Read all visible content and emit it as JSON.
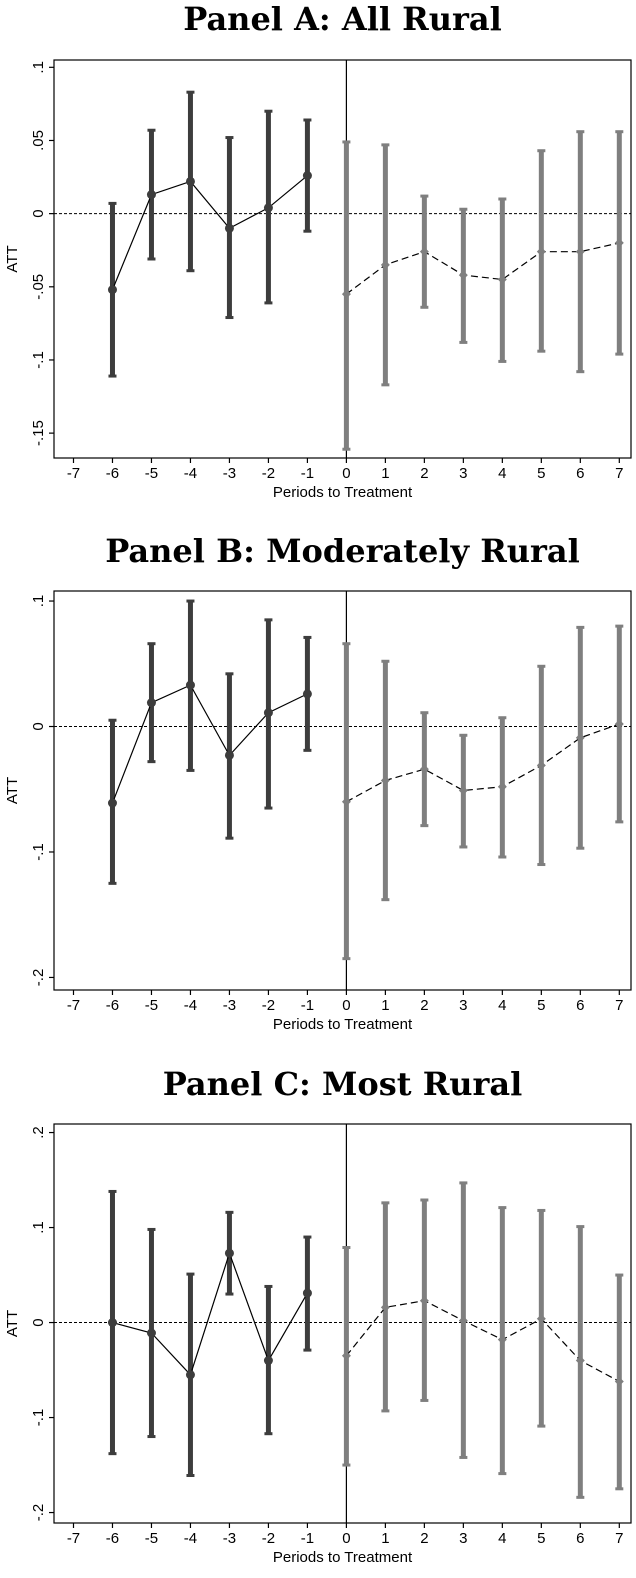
{
  "chart_data": [
    {
      "type": "scatter",
      "title": "Panel A: All Rural",
      "xlabel": "Periods to Treatment",
      "ylabel": "ATT",
      "xlim": [
        -7.5,
        7.3
      ],
      "ylim": [
        -0.167,
        0.105
      ],
      "x_ticks": [
        "-7",
        "-6",
        "-5",
        "-4",
        "-3",
        "-2",
        "-1",
        "0",
        "1",
        "2",
        "3",
        "4",
        "5",
        "6",
        "7"
      ],
      "y_ticks": [
        0.1,
        0.05,
        0,
        -0.05,
        -0.1,
        -0.15
      ],
      "y_tick_labels": [
        ".1",
        ".05",
        "0",
        "-.05",
        "-.1",
        "-.15"
      ],
      "treatment_line_x": 0,
      "reference_y": 0,
      "series": [
        {
          "color": "#3d3d3d",
          "line_style": "solid",
          "points": [
            {
              "x": -6,
              "y": -0.052,
              "lo": -0.111,
              "hi": 0.007
            },
            {
              "x": -5,
              "y": 0.013,
              "lo": -0.031,
              "hi": 0.057
            },
            {
              "x": -4,
              "y": 0.022,
              "lo": -0.039,
              "hi": 0.083
            },
            {
              "x": -3,
              "y": -0.01,
              "lo": -0.071,
              "hi": 0.052
            },
            {
              "x": -2,
              "y": 0.004,
              "lo": -0.061,
              "hi": 0.07
            },
            {
              "x": -1,
              "y": 0.026,
              "lo": -0.012,
              "hi": 0.064
            }
          ]
        },
        {
          "color": "#7f7f7f",
          "line_style": "dashed",
          "points": [
            {
              "x": 0,
              "y": -0.055,
              "lo": -0.161,
              "hi": 0.049
            },
            {
              "x": 1,
              "y": -0.035,
              "lo": -0.117,
              "hi": 0.047
            },
            {
              "x": 2,
              "y": -0.026,
              "lo": -0.064,
              "hi": 0.012
            },
            {
              "x": 3,
              "y": -0.042,
              "lo": -0.088,
              "hi": 0.003
            },
            {
              "x": 4,
              "y": -0.045,
              "lo": -0.101,
              "hi": 0.01
            },
            {
              "x": 5,
              "y": -0.026,
              "lo": -0.094,
              "hi": 0.043
            },
            {
              "x": 6,
              "y": -0.026,
              "lo": -0.108,
              "hi": 0.056
            },
            {
              "x": 7,
              "y": -0.02,
              "lo": -0.096,
              "hi": 0.056
            }
          ]
        }
      ]
    },
    {
      "type": "scatter",
      "title": "Panel B: Moderately Rural",
      "xlabel": "Periods to Treatment",
      "ylabel": "ATT",
      "xlim": [
        -7.5,
        7.3
      ],
      "ylim": [
        -0.21,
        0.108
      ],
      "x_ticks": [
        "-7",
        "-6",
        "-5",
        "-4",
        "-3",
        "-2",
        "-1",
        "0",
        "1",
        "2",
        "3",
        "4",
        "5",
        "6",
        "7"
      ],
      "y_ticks": [
        0.1,
        0,
        -0.1,
        -0.2
      ],
      "y_tick_labels": [
        ".1",
        "0",
        "-.1",
        "-.2"
      ],
      "treatment_line_x": 0,
      "reference_y": 0,
      "series": [
        {
          "color": "#3d3d3d",
          "line_style": "solid",
          "points": [
            {
              "x": -6,
              "y": -0.061,
              "lo": -0.125,
              "hi": 0.005
            },
            {
              "x": -5,
              "y": 0.019,
              "lo": -0.028,
              "hi": 0.066
            },
            {
              "x": -4,
              "y": 0.033,
              "lo": -0.035,
              "hi": 0.1
            },
            {
              "x": -3,
              "y": -0.023,
              "lo": -0.089,
              "hi": 0.042
            },
            {
              "x": -2,
              "y": 0.011,
              "lo": -0.065,
              "hi": 0.085
            },
            {
              "x": -1,
              "y": 0.026,
              "lo": -0.019,
              "hi": 0.071
            }
          ]
        },
        {
          "color": "#7f7f7f",
          "line_style": "dashed",
          "points": [
            {
              "x": 0,
              "y": -0.06,
              "lo": -0.185,
              "hi": 0.066
            },
            {
              "x": 1,
              "y": -0.043,
              "lo": -0.138,
              "hi": 0.052
            },
            {
              "x": 2,
              "y": -0.034,
              "lo": -0.079,
              "hi": 0.011
            },
            {
              "x": 3,
              "y": -0.051,
              "lo": -0.096,
              "hi": -0.007
            },
            {
              "x": 4,
              "y": -0.048,
              "lo": -0.104,
              "hi": 0.007
            },
            {
              "x": 5,
              "y": -0.031,
              "lo": -0.11,
              "hi": 0.048
            },
            {
              "x": 6,
              "y": -0.009,
              "lo": -0.097,
              "hi": 0.079
            },
            {
              "x": 7,
              "y": 0.002,
              "lo": -0.076,
              "hi": 0.08
            }
          ]
        }
      ]
    },
    {
      "type": "scatter",
      "title": "Panel C: Most Rural",
      "xlabel": "Periods to Treatment",
      "ylabel": "ATT",
      "xlim": [
        -7.5,
        7.3
      ],
      "ylim": [
        -0.211,
        0.209
      ],
      "x_ticks": [
        "-7",
        "-6",
        "-5",
        "-4",
        "-3",
        "-2",
        "-1",
        "0",
        "1",
        "2",
        "3",
        "4",
        "5",
        "6",
        "7"
      ],
      "y_ticks": [
        0.2,
        0.1,
        0,
        -0.1,
        -0.2
      ],
      "y_tick_labels": [
        ".2",
        ".1",
        "0",
        "-.1",
        "-.2"
      ],
      "treatment_line_x": 0,
      "reference_y": 0,
      "series": [
        {
          "color": "#3d3d3d",
          "line_style": "solid",
          "points": [
            {
              "x": -6,
              "y": 0.0,
              "lo": -0.138,
              "hi": 0.138
            },
            {
              "x": -5,
              "y": -0.011,
              "lo": -0.12,
              "hi": 0.098
            },
            {
              "x": -4,
              "y": -0.055,
              "lo": -0.161,
              "hi": 0.051
            },
            {
              "x": -3,
              "y": 0.073,
              "lo": 0.03,
              "hi": 0.116
            },
            {
              "x": -2,
              "y": -0.04,
              "lo": -0.117,
              "hi": 0.038
            },
            {
              "x": -1,
              "y": 0.031,
              "lo": -0.029,
              "hi": 0.09
            }
          ]
        },
        {
          "color": "#7f7f7f",
          "line_style": "dashed",
          "points": [
            {
              "x": 0,
              "y": -0.035,
              "lo": -0.15,
              "hi": 0.079
            },
            {
              "x": 1,
              "y": 0.016,
              "lo": -0.093,
              "hi": 0.126
            },
            {
              "x": 2,
              "y": 0.023,
              "lo": -0.082,
              "hi": 0.129
            },
            {
              "x": 3,
              "y": 0.002,
              "lo": -0.142,
              "hi": 0.147
            },
            {
              "x": 4,
              "y": -0.018,
              "lo": -0.159,
              "hi": 0.121
            },
            {
              "x": 5,
              "y": 0.004,
              "lo": -0.109,
              "hi": 0.118
            },
            {
              "x": 6,
              "y": -0.04,
              "lo": -0.184,
              "hi": 0.101
            },
            {
              "x": 7,
              "y": -0.062,
              "lo": -0.175,
              "hi": 0.05
            }
          ]
        }
      ]
    }
  ]
}
